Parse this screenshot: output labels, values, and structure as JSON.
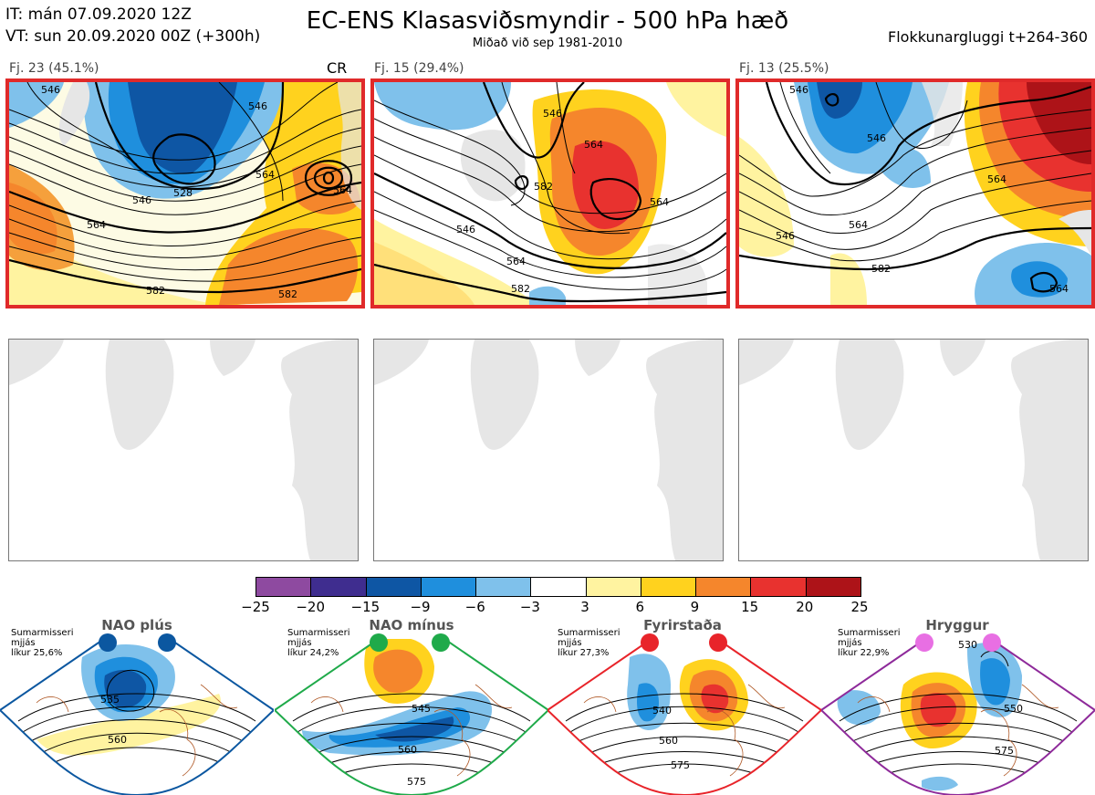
{
  "header": {
    "it_line": "IT: mán 07.09.2020 12Z",
    "vt_line": "VT: sun 20.09.2020 00Z  (+300h)",
    "title": "EC-ENS Klasasviðsmyndir - 500 hPa hæð",
    "subtitle": "Miðað við sep 1981-2010",
    "window": "Flokkunargluggi t+264-360"
  },
  "clusters": [
    {
      "label": "Fj. 23 (45.1%)",
      "marker": "CR",
      "contours": [
        "546",
        "546",
        "528",
        "564",
        "564",
        "582",
        "582",
        "546",
        "564"
      ]
    },
    {
      "label": "Fj. 15 (29.4%)",
      "marker": "",
      "contours": [
        "546",
        "564",
        "546",
        "564",
        "582",
        "582",
        "564"
      ]
    },
    {
      "label": "Fj. 13 (25.5%)",
      "marker": "",
      "contours": [
        "546",
        "546",
        "564",
        "546",
        "564",
        "582",
        "564"
      ]
    }
  ],
  "colorbar": {
    "ticks": [
      "−25",
      "−20",
      "−15",
      "−9",
      "−6",
      "−3",
      "3",
      "6",
      "9",
      "15",
      "20",
      "25"
    ],
    "colors": [
      "#8e4aa0",
      "#3f2d8f",
      "#0e56a4",
      "#1f8fdd",
      "#7fc1eb",
      "#ffffff",
      "#fff3a0",
      "#ffd21e",
      "#f5862c",
      "#e8322f",
      "#ad1318"
    ]
  },
  "regimes": [
    {
      "name": "NAO plús",
      "info": [
        "Sumarmisseri",
        "mjjás",
        "líkur 25,6%"
      ],
      "color": "#0b57a0",
      "contours": [
        "535",
        "560"
      ]
    },
    {
      "name": "NAO mínus",
      "info": [
        "Sumarmisseri",
        "mjjás",
        "líkur 24,2%"
      ],
      "color": "#1faa4a",
      "contours": [
        "545",
        "560",
        "575"
      ]
    },
    {
      "name": "Fyrirstaða",
      "info": [
        "Sumarmisseri",
        "mjjás",
        "líkur 27,3%"
      ],
      "color": "#e8242a",
      "contours": [
        "540",
        "560",
        "575"
      ]
    },
    {
      "name": "Hryggur",
      "info": [
        "Sumarmisseri",
        "mjjás",
        "líkur 22,9%"
      ],
      "color": "#e86fe3",
      "contours": [
        "530",
        "550",
        "575"
      ]
    }
  ]
}
